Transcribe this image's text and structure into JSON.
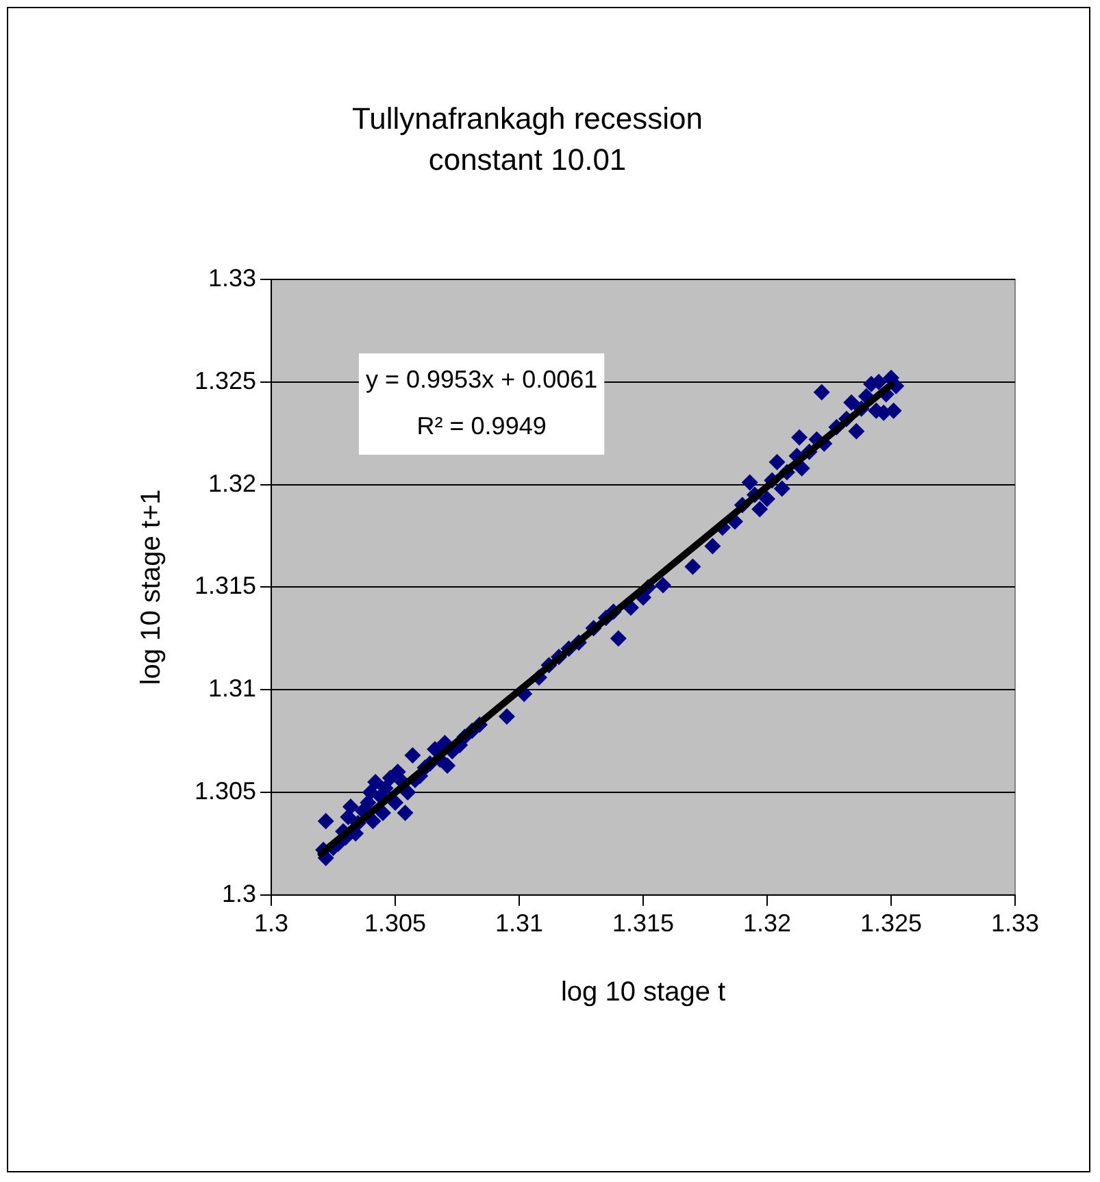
{
  "chart_data": {
    "type": "scatter",
    "title": "Tullynafrankagh recession constant 10.01",
    "xlabel": "log 10 stage t",
    "ylabel": "log 10 stage t+1",
    "annotations": [
      "y = 0.9953x + 0.0061",
      "R² = 0.9949"
    ],
    "xlim": [
      1.3,
      1.33
    ],
    "xticks": [
      1.3,
      1.305,
      1.31,
      1.315,
      1.32,
      1.325,
      1.33
    ],
    "ylim": [
      1.3,
      1.33
    ],
    "yticks": [
      1.3,
      1.305,
      1.31,
      1.315,
      1.32,
      1.325,
      1.33
    ],
    "grid": "y",
    "legend": false,
    "series": [
      {
        "marker": "diamond",
        "color": "#000080",
        "x": [
          1.3021,
          1.3022,
          1.3022,
          1.3025,
          1.3027,
          1.3029,
          1.303,
          1.3031,
          1.3032,
          1.3034,
          1.3035,
          1.3037,
          1.3039,
          1.304,
          1.3041,
          1.3042,
          1.3044,
          1.3045,
          1.3046,
          1.3048,
          1.305,
          1.3051,
          1.3053,
          1.3054,
          1.3055,
          1.3057,
          1.3058,
          1.306,
          1.3062,
          1.3064,
          1.3066,
          1.3068,
          1.307,
          1.3071,
          1.3073,
          1.3076,
          1.3078,
          1.3081,
          1.3084,
          1.3095,
          1.3102,
          1.3108,
          1.3112,
          1.3116,
          1.312,
          1.3124,
          1.313,
          1.3135,
          1.3138,
          1.314,
          1.3145,
          1.315,
          1.3152,
          1.3158,
          1.317,
          1.3178,
          1.3182,
          1.3187,
          1.319,
          1.3193,
          1.3195,
          1.3197,
          1.32,
          1.3202,
          1.3204,
          1.3206,
          1.3208,
          1.3212,
          1.3213,
          1.3214,
          1.3217,
          1.322,
          1.3222,
          1.3223,
          1.3228,
          1.3232,
          1.3234,
          1.3236,
          1.3238,
          1.324,
          1.3242,
          1.3244,
          1.3245,
          1.3247,
          1.3248,
          1.325,
          1.3251,
          1.3252
        ],
        "values": [
          1.3022,
          1.3018,
          1.3036,
          1.3023,
          1.3025,
          1.3031,
          1.3028,
          1.3038,
          1.3043,
          1.303,
          1.3035,
          1.3041,
          1.3045,
          1.305,
          1.3036,
          1.3055,
          1.3048,
          1.304,
          1.3052,
          1.3057,
          1.3045,
          1.306,
          1.3055,
          1.304,
          1.305,
          1.3068,
          1.3056,
          1.3058,
          1.3062,
          1.3064,
          1.3071,
          1.3066,
          1.3074,
          1.3063,
          1.307,
          1.3073,
          1.3077,
          1.308,
          1.3083,
          1.3087,
          1.3098,
          1.3106,
          1.3112,
          1.3116,
          1.312,
          1.3123,
          1.313,
          1.3135,
          1.3138,
          1.3125,
          1.314,
          1.3145,
          1.315,
          1.3151,
          1.316,
          1.317,
          1.3179,
          1.3182,
          1.319,
          1.3201,
          1.3195,
          1.3188,
          1.3193,
          1.3202,
          1.3211,
          1.3198,
          1.3206,
          1.3214,
          1.3223,
          1.3208,
          1.3216,
          1.3222,
          1.3245,
          1.322,
          1.3228,
          1.3232,
          1.324,
          1.3226,
          1.3237,
          1.3243,
          1.3249,
          1.3236,
          1.325,
          1.3235,
          1.3244,
          1.3252,
          1.3236,
          1.3248
        ]
      },
      {
        "type": "line",
        "marker": "none",
        "color": "#000000",
        "x": [
          1.302,
          1.325
        ],
        "values": [
          1.30201,
          1.32487
        ]
      }
    ]
  }
}
